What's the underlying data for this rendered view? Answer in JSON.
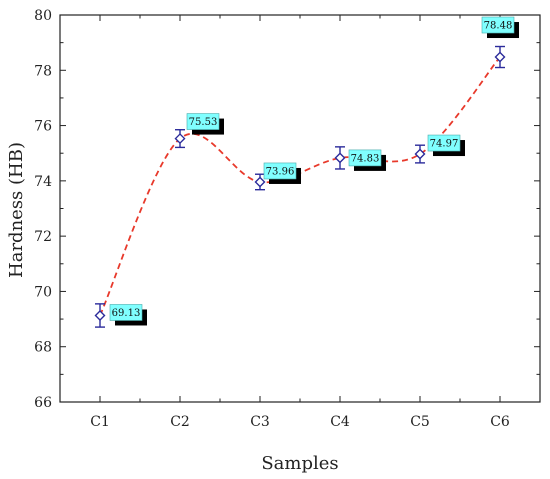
{
  "chart_data": {
    "type": "line",
    "title": "",
    "xlabel": "Samples",
    "ylabel": "Hardness (HB)",
    "categories": [
      "C1",
      "C2",
      "C3",
      "C4",
      "C5",
      "C6"
    ],
    "ylim": [
      66,
      80
    ],
    "yticks": [
      66,
      68,
      70,
      72,
      74,
      76,
      78,
      80
    ],
    "series": [
      {
        "values": [
          69.13,
          75.53,
          73.96,
          74.83,
          74.97,
          78.48
        ],
        "errors": [
          0.42,
          0.32,
          0.28,
          0.4,
          0.32,
          0.38
        ],
        "labels": [
          "69.13",
          "75.53",
          "73.96",
          "74.83",
          "74.97",
          "78.48"
        ]
      }
    ],
    "colors": {
      "line": "#e8392b",
      "marker": "#2b2b9b",
      "label_bg": "#80ffff",
      "label_shadow": "#000000"
    },
    "grid": false,
    "legend": "none"
  }
}
